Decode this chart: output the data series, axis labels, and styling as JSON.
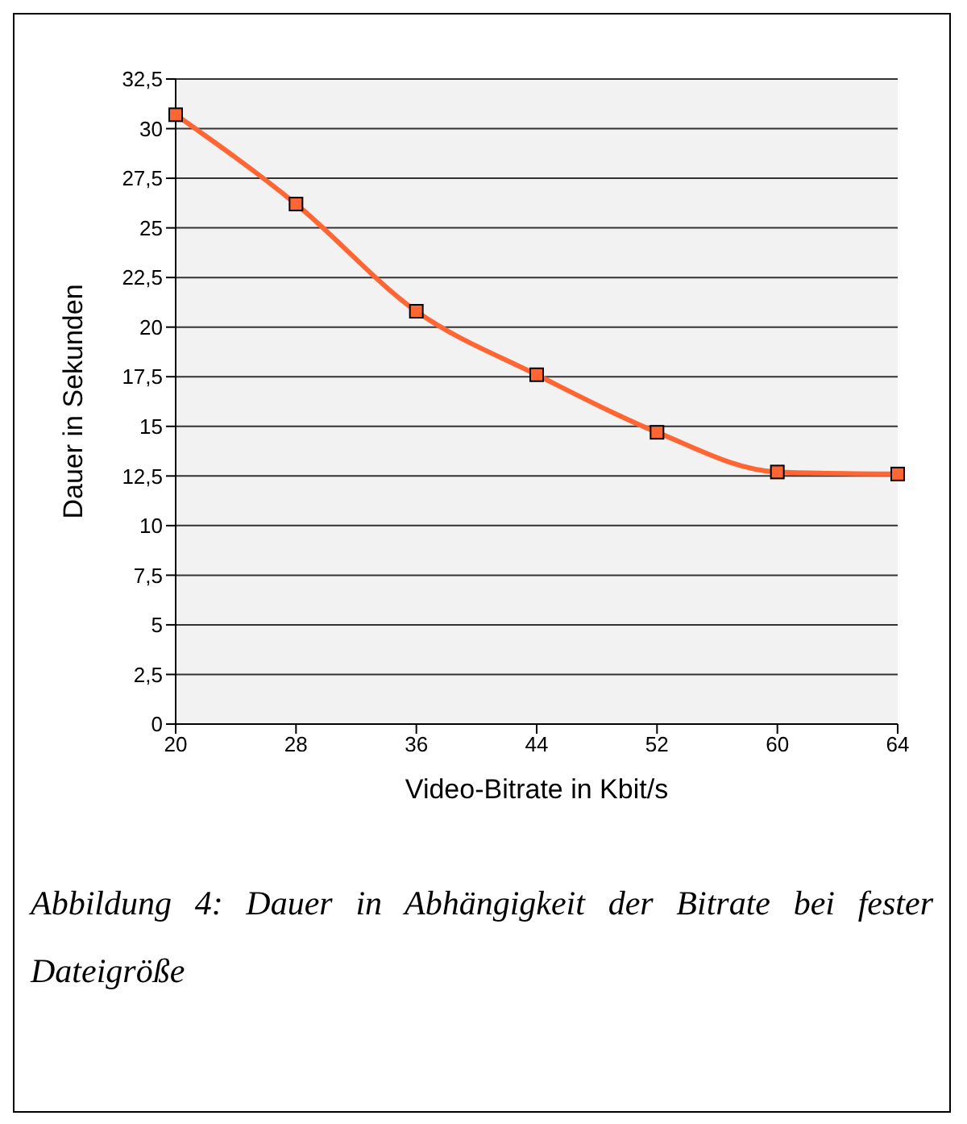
{
  "chart_data": {
    "type": "line",
    "categories": [
      "20",
      "28",
      "36",
      "44",
      "52",
      "60",
      "64"
    ],
    "series": [
      {
        "color": "#ff6633",
        "values": [
          30.7,
          26.2,
          20.8,
          17.6,
          14.7,
          12.7,
          12.6
        ]
      }
    ],
    "xlabel": "Video-Bitrate in Kbit/s",
    "ylabel": "Dauer in Sekunden",
    "ylim": [
      0,
      32.5
    ],
    "yticks": [
      0,
      {
        "value": 2.5,
        "label": "2,5"
      },
      5,
      {
        "value": 7.5,
        "label": "7,5"
      },
      10,
      {
        "value": 12.5,
        "label": "12,5"
      },
      15,
      {
        "value": 17.5,
        "label": "17,5"
      },
      20,
      {
        "value": 22.5,
        "label": "22,5"
      },
      25,
      {
        "value": 27.5,
        "label": "27,5"
      },
      30,
      {
        "value": 32.5,
        "label": "32,5"
      }
    ],
    "grid": "y",
    "marker": "square",
    "line_style": "solid",
    "legend": false,
    "annotations": [
      "Abbildung 4: Dauer in Abhängigkeit der Bitrate bei fester Dateigröße"
    ]
  }
}
